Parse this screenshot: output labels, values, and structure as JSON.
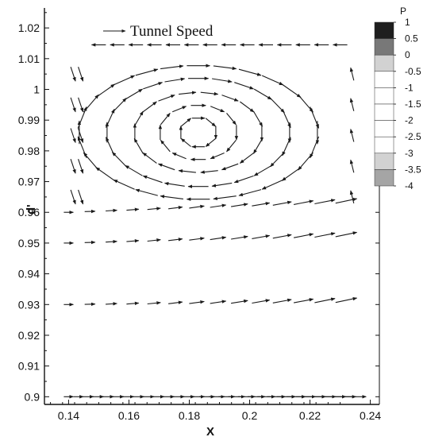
{
  "chart_data": {
    "type": "vector_field",
    "xlabel": "X",
    "ylabel": "d'",
    "xlim": [
      0.132,
      0.243
    ],
    "ylim": [
      0.8975,
      1.0265
    ],
    "x_ticks": [
      "0.14",
      "0.16",
      "0.18",
      "0.2",
      "0.22",
      "0.24"
    ],
    "y_ticks": [
      "0.9",
      "0.91",
      "0.92",
      "0.93",
      "0.94",
      "0.95",
      "0.96",
      "0.97",
      "0.98",
      "0.99",
      "1",
      "1.01",
      "1.02"
    ],
    "legend": {
      "label": "Tunnel Speed"
    },
    "vortex_center": [
      0.183,
      0.986
    ],
    "colorbar": {
      "title": "P",
      "levels": [
        "1",
        "0.5",
        "0",
        "-0.5",
        "-1",
        "-1.5",
        "-2",
        "-2.5",
        "-3",
        "-3.5",
        "-4"
      ]
    }
  }
}
